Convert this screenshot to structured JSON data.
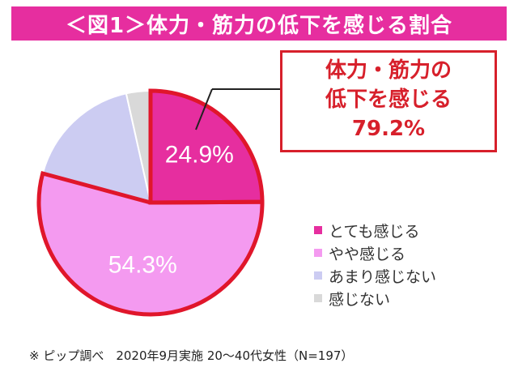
{
  "title": "＜図1＞体力・筋力の低下を感じる割合",
  "callout": {
    "line1": "体力・筋力の",
    "line2": "低下を感じる",
    "value": "79.2%"
  },
  "chart_data": {
    "type": "pie",
    "title": "＜図1＞体力・筋力の低下を感じる割合",
    "slices": [
      {
        "label": "とても感じる",
        "value": 24.9,
        "display": "24.9%",
        "color": "#e62e9f"
      },
      {
        "label": "やや感じる",
        "value": 54.3,
        "display": "54.3%",
        "color": "#f49af0"
      },
      {
        "label": "あまり感じない",
        "value": 17.3,
        "display": "",
        "color": "#ccccf2"
      },
      {
        "label": "感じない",
        "value": 3.5,
        "display": "",
        "color": "#d9d9d9"
      }
    ],
    "legend_position": "right",
    "highlight_total": "79.2%"
  },
  "legend": [
    {
      "label": "とても感じる",
      "color": "#e62e9f"
    },
    {
      "label": "やや感じる",
      "color": "#f49af0"
    },
    {
      "label": "あまり感じない",
      "color": "#ccccf2"
    },
    {
      "label": "感じない",
      "color": "#d9d9d9"
    }
  ],
  "footnote": "※ ピップ調べ　2020年9月実施 20～40代女性（N=197）"
}
